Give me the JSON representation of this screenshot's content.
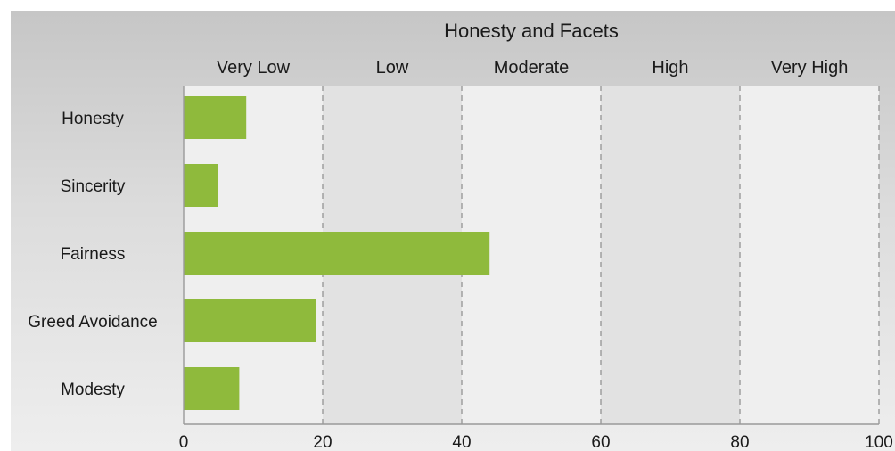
{
  "chart_data": {
    "type": "bar",
    "orientation": "horizontal",
    "title": "Honesty and Facets",
    "categories": [
      "Honesty",
      "Sincerity",
      "Fairness",
      "Greed Avoidance",
      "Modesty"
    ],
    "values": [
      9,
      5,
      44,
      19,
      8
    ],
    "xlim": [
      0,
      100
    ],
    "x_ticks": [
      0,
      20,
      40,
      60,
      80,
      100
    ],
    "bands": [
      {
        "label": "Very Low",
        "from": 0,
        "to": 20
      },
      {
        "label": "Low",
        "from": 20,
        "to": 40
      },
      {
        "label": "Moderate",
        "from": 40,
        "to": 60
      },
      {
        "label": "High",
        "from": 60,
        "to": 80
      },
      {
        "label": "Very High",
        "from": 80,
        "to": 100
      }
    ],
    "grid": "dashed vertical at band boundaries",
    "colors": {
      "bar": "#8fba3c",
      "band_light": "#efefef",
      "band_dark": "#e2e2e2",
      "grid": "#9a9a9a",
      "axis": "#9a9a9a"
    }
  }
}
